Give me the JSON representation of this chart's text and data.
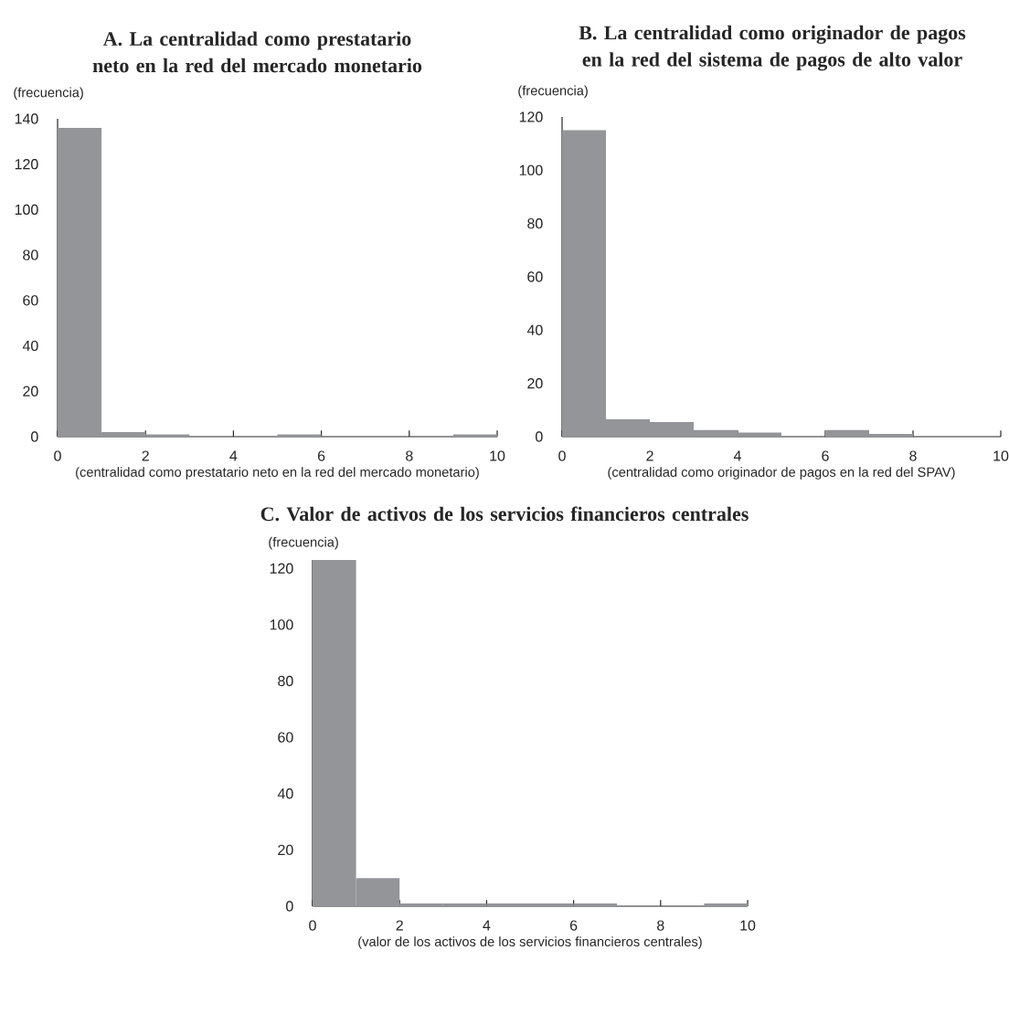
{
  "chart_data": [
    {
      "type": "histogram",
      "title": "A. La centralidad como prestatario neto en la red del mercado monetario",
      "ylabel": "(frecuencia)",
      "xlabel": "(centralidad como prestatario neto en la red del mercado monetario)",
      "bins": [
        0,
        1,
        2,
        3,
        4,
        5,
        6,
        7,
        8,
        9,
        10
      ],
      "values": [
        136,
        2,
        1,
        0,
        0,
        1,
        0,
        0,
        0,
        1
      ],
      "color": "#939598",
      "xlim": [
        0,
        10
      ],
      "xticks": [
        0,
        2,
        4,
        6,
        8,
        10
      ],
      "ylim": [
        0,
        140
      ],
      "yticks": [
        0,
        20,
        40,
        60,
        80,
        100,
        120,
        140
      ]
    },
    {
      "type": "histogram",
      "title": "B. La centralidad como originador de pagos en la red del sistema de pagos de alto valor",
      "ylabel": "(frecuencia)",
      "xlabel": "(centralidad como originador de pagos en la red del SPAV)",
      "bins": [
        0,
        1,
        2,
        3,
        4,
        5,
        6,
        7,
        8,
        9,
        10
      ],
      "values": [
        115,
        6.5,
        5.5,
        2.5,
        1.5,
        0,
        2.5,
        1,
        0,
        0
      ],
      "color": "#939598",
      "xlim": [
        0,
        10
      ],
      "xticks": [
        0,
        2,
        4,
        6,
        8,
        10
      ],
      "ylim": [
        0,
        120
      ],
      "yticks": [
        0,
        20,
        40,
        60,
        80,
        100,
        120
      ]
    },
    {
      "type": "histogram",
      "title": "C. Valor de activos de los servicios financieros centrales",
      "ylabel": "(frecuencia)",
      "xlabel": "(valor de los activos de los servicios financieros centrales)",
      "bins": [
        0,
        1,
        2,
        3,
        4,
        5,
        6,
        7,
        8,
        9,
        10
      ],
      "values": [
        123,
        10,
        1,
        1,
        1,
        1,
        1,
        0,
        0,
        1
      ],
      "color": "#939598",
      "xlim": [
        0,
        10
      ],
      "xticks": [
        0,
        2,
        4,
        6,
        8,
        10
      ],
      "ylim": [
        0,
        123
      ],
      "yticks": [
        0,
        20,
        40,
        60,
        80,
        100,
        120
      ]
    }
  ]
}
